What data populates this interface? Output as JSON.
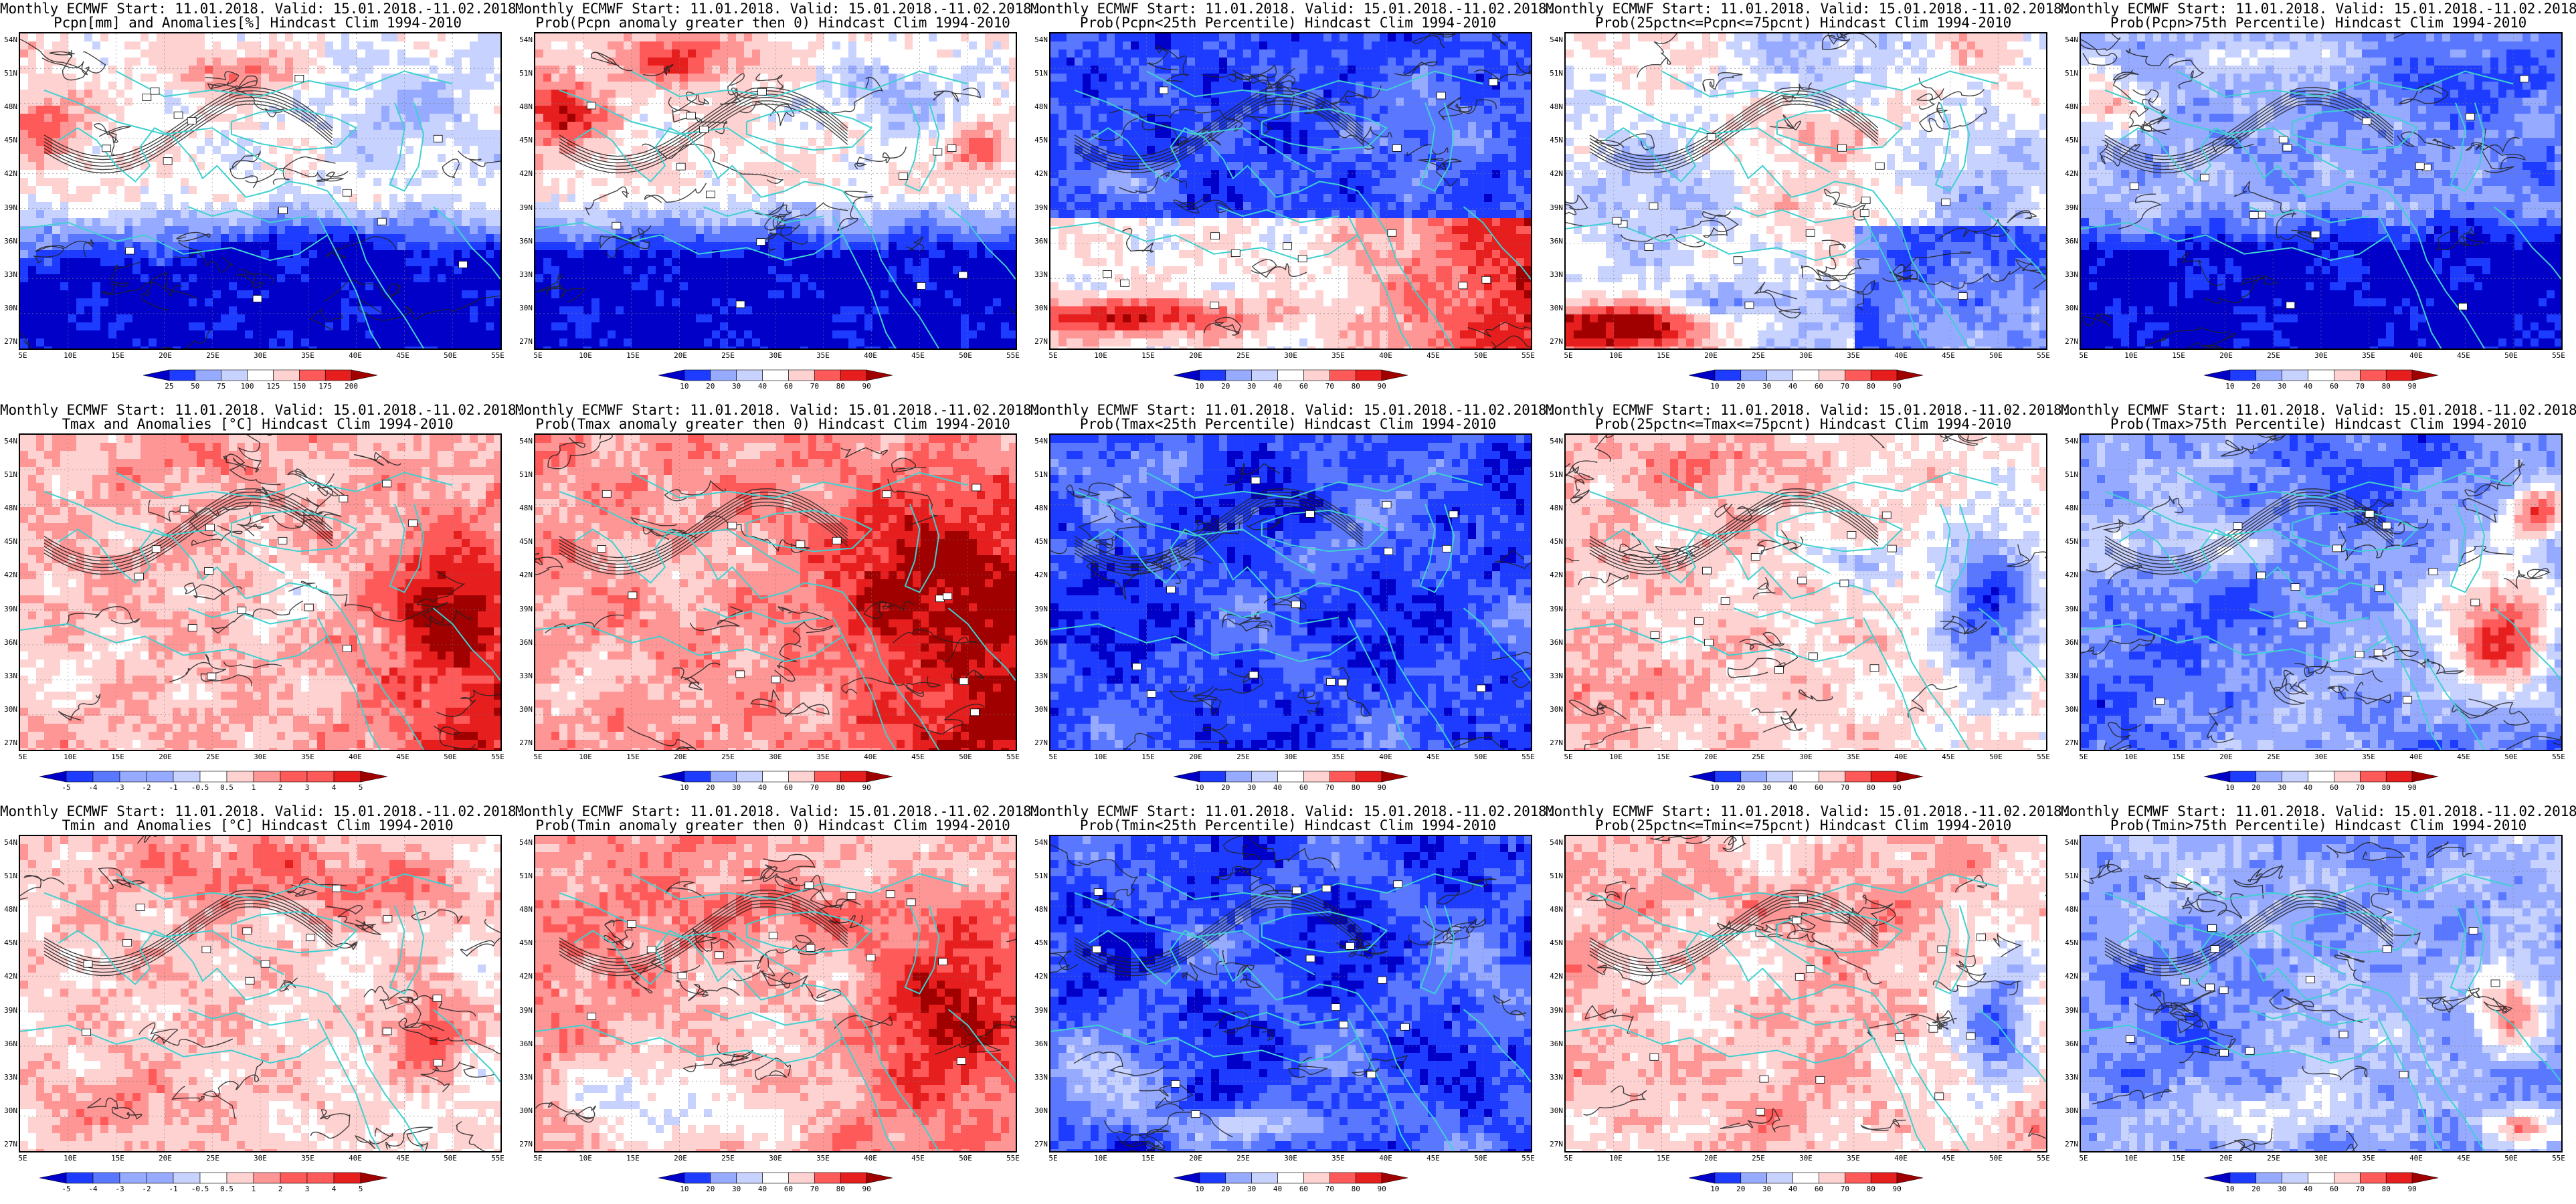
{
  "model_line": "Monthly ECMWF Start: 11.01.2018. Valid: 15.01.2018.-11.02.2018.",
  "hindcast": "Hindcast Clim 1994-2010",
  "latitude_labels": [
    "54N",
    "51N",
    "48N",
    "45N",
    "42N",
    "39N",
    "36N",
    "33N",
    "30N",
    "27N"
  ],
  "longitude_labels": [
    "5E",
    "10E",
    "15E",
    "20E",
    "25E",
    "30E",
    "35E",
    "40E",
    "45E",
    "50E",
    "55E"
  ],
  "colors": {
    "land_outline": "#3fd0d0",
    "contour": "#222222",
    "scale": [
      "#0000c8",
      "#1e3cff",
      "#5a78ff",
      "#96aaff",
      "#c8d2ff",
      "#ffffff",
      "#ffd2d2",
      "#ff9696",
      "#ff5a5a",
      "#e61e1e",
      "#a00000"
    ]
  },
  "colorbars": {
    "precip_anomaly_pct": [
      "25",
      "50",
      "75",
      "100",
      "125",
      "150",
      "175",
      "200"
    ],
    "probability_pct": [
      "10",
      "20",
      "30",
      "40",
      "60",
      "70",
      "80",
      "90"
    ],
    "temperature_anomaly_c": [
      "-5",
      "-4",
      "-3",
      "-2",
      "-1",
      "-0.5",
      "0.5",
      "1",
      "2",
      "3",
      "4",
      "5"
    ]
  },
  "panels": [
    {
      "id": "r1c1",
      "title": "Pcpn[mm] and Anomalies[%] Hindcast Clim 1994-2010",
      "variable": "precipitation",
      "product": "anomaly",
      "colorbar": "precip_anomaly_pct"
    },
    {
      "id": "r1c2",
      "title": "Prob(Pcpn anomaly greater then 0) Hindcast Clim 1994-2010",
      "variable": "precipitation",
      "product": "prob-above-zero",
      "colorbar": "probability_pct"
    },
    {
      "id": "r1c3",
      "title": "Prob(Pcpn<25th Percentile) Hindcast Clim 1994-2010",
      "variable": "precipitation",
      "product": "prob-lower-tercile",
      "colorbar": "probability_pct"
    },
    {
      "id": "r1c4",
      "title": "Prob(25pctn<=Pcpn<=75pcnt) Hindcast Clim 1994-2010",
      "variable": "precipitation",
      "product": "prob-middle",
      "colorbar": "probability_pct"
    },
    {
      "id": "r1c5",
      "title": "Prob(Pcpn>75th Percentile) Hindcast Clim 1994-2010",
      "variable": "precipitation",
      "product": "prob-upper",
      "colorbar": "probability_pct"
    },
    {
      "id": "r2c1",
      "title": "Tmax and Anomalies [°C] Hindcast Clim 1994-2010",
      "variable": "tmax",
      "product": "anomaly",
      "colorbar": "temperature_anomaly_c"
    },
    {
      "id": "r2c2",
      "title": "Prob(Tmax anomaly greater then 0) Hindcast Clim 1994-2010",
      "variable": "tmax",
      "product": "prob-above-zero",
      "colorbar": "probability_pct"
    },
    {
      "id": "r2c3",
      "title": "Prob(Tmax<25th Percentile) Hindcast Clim 1994-2010",
      "variable": "tmax",
      "product": "prob-lower-tercile",
      "colorbar": "probability_pct"
    },
    {
      "id": "r2c4",
      "title": "Prob(25pctn<=Tmax<=75pcnt) Hindcast Clim 1994-2010",
      "variable": "tmax",
      "product": "prob-middle",
      "colorbar": "probability_pct"
    },
    {
      "id": "r2c5",
      "title": "Prob(Tmax>75th Percentile) Hindcast Clim 1994-2010",
      "variable": "tmax",
      "product": "prob-upper",
      "colorbar": "probability_pct"
    },
    {
      "id": "r3c1",
      "title": "Tmin and Anomalies [°C] Hindcast Clim 1994-2010",
      "variable": "tmin",
      "product": "anomaly",
      "colorbar": "temperature_anomaly_c"
    },
    {
      "id": "r3c2",
      "title": "Prob(Tmin anomaly greater then 0) Hindcast Clim 1994-2010",
      "variable": "tmin",
      "product": "prob-above-zero",
      "colorbar": "probability_pct"
    },
    {
      "id": "r3c3",
      "title": "Prob(Tmin<25th Percentile) Hindcast Clim 1994-2010",
      "variable": "tmin",
      "product": "prob-lower-tercile",
      "colorbar": "probability_pct"
    },
    {
      "id": "r3c4",
      "title": "Prob(25pctn<=Tmin<=75pcnt) Hindcast Clim 1994-2010",
      "variable": "tmin",
      "product": "prob-middle",
      "colorbar": "probability_pct"
    },
    {
      "id": "r3c5",
      "title": "Prob(Tmin>75th Percentile) Hindcast Clim 1994-2010",
      "variable": "tmin",
      "product": "prob-upper",
      "colorbar": "probability_pct"
    }
  ]
}
